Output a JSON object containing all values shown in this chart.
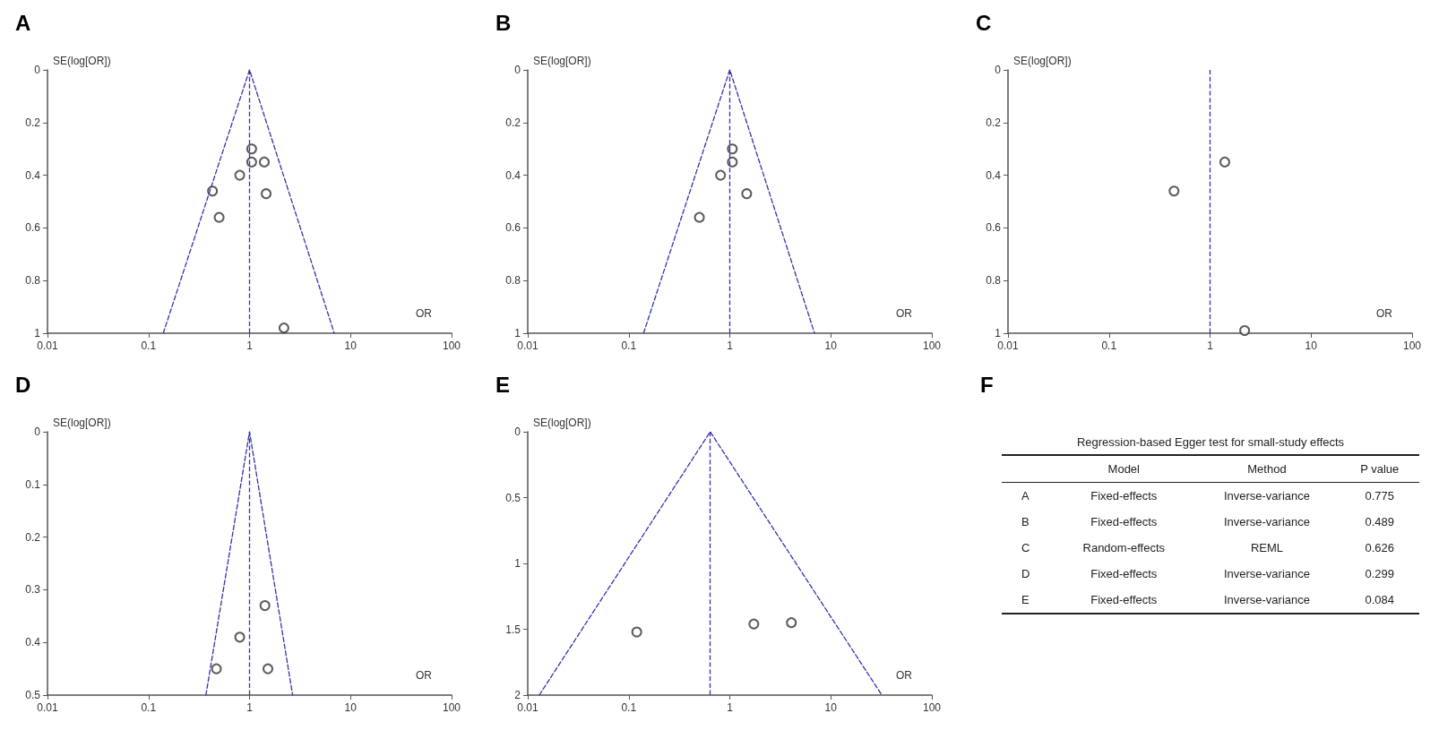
{
  "chart_data": [
    {
      "type": "scatter",
      "title": "A",
      "xlabel": "OR",
      "ylabel": "SE(log[OR])",
      "log": "x",
      "xlim": [
        0.01,
        100
      ],
      "xticks": [
        0.01,
        0.1,
        1,
        10,
        100
      ],
      "ylim": [
        1,
        0
      ],
      "yticks": [
        0,
        0.2,
        0.4,
        0.6,
        0.8,
        1
      ],
      "marker": "circle",
      "grid": false,
      "ref_lines": [
        {
          "axis": "x",
          "value": 1,
          "color": "#3333aa",
          "line_style": "dashed"
        }
      ],
      "series": [
        {
          "type": "scatter",
          "color": "#333333",
          "x": [
            1.05,
            1.05,
            1.4,
            0.8,
            0.43,
            1.46,
            0.5,
            2.19
          ],
          "values": [
            0.3,
            0.35,
            0.35,
            0.4,
            0.46,
            0.47,
            0.56,
            0.98
          ]
        },
        {
          "type": "line",
          "color": "#3333aa",
          "line_style": "dashed",
          "marker": "none",
          "x": [
            0.14,
            1,
            6.9
          ],
          "values": [
            1,
            0,
            1
          ]
        }
      ]
    },
    {
      "type": "scatter",
      "title": "B",
      "xlabel": "OR",
      "ylabel": "SE(log[OR])",
      "log": "x",
      "xlim": [
        0.01,
        100
      ],
      "xticks": [
        0.01,
        0.1,
        1,
        10,
        100
      ],
      "ylim": [
        1,
        0
      ],
      "yticks": [
        0,
        0.2,
        0.4,
        0.6,
        0.8,
        1
      ],
      "marker": "circle",
      "grid": false,
      "ref_lines": [
        {
          "axis": "x",
          "value": 1,
          "color": "#3333aa",
          "line_style": "dashed"
        }
      ],
      "series": [
        {
          "type": "scatter",
          "color": "#333333",
          "x": [
            1.06,
            1.06,
            0.81,
            1.47,
            0.5
          ],
          "values": [
            0.3,
            0.35,
            0.4,
            0.47,
            0.56
          ]
        },
        {
          "type": "line",
          "color": "#3333aa",
          "line_style": "dashed",
          "marker": "none",
          "x": [
            0.14,
            1,
            6.9
          ],
          "values": [
            1,
            0,
            1
          ]
        }
      ]
    },
    {
      "type": "scatter",
      "title": "C",
      "xlabel": "OR",
      "ylabel": "SE(log[OR])",
      "log": "x",
      "xlim": [
        0.01,
        100
      ],
      "xticks": [
        0.01,
        0.1,
        1,
        10,
        100
      ],
      "ylim": [
        1,
        0
      ],
      "yticks": [
        0,
        0.2,
        0.4,
        0.6,
        0.8,
        1
      ],
      "marker": "circle",
      "grid": false,
      "ref_lines": [
        {
          "axis": "x",
          "value": 1,
          "color": "#3333aa",
          "line_style": "dashed"
        }
      ],
      "series": [
        {
          "type": "scatter",
          "color": "#333333",
          "x": [
            1.4,
            0.44,
            2.2
          ],
          "values": [
            0.35,
            0.46,
            0.99
          ]
        }
      ]
    },
    {
      "type": "scatter",
      "title": "D",
      "xlabel": "OR",
      "ylabel": "SE(log[OR])",
      "log": "x",
      "xlim": [
        0.01,
        100
      ],
      "xticks": [
        0.01,
        0.1,
        1,
        10,
        100
      ],
      "ylim": [
        0.5,
        0
      ],
      "yticks": [
        0,
        0.1,
        0.2,
        0.3,
        0.4,
        0.5
      ],
      "marker": "circle",
      "grid": false,
      "ref_lines": [
        {
          "axis": "x",
          "value": 1,
          "color": "#3333aa",
          "line_style": "dashed"
        }
      ],
      "series": [
        {
          "type": "scatter",
          "color": "#333333",
          "x": [
            1.42,
            0.8,
            0.47,
            1.52
          ],
          "values": [
            0.33,
            0.39,
            0.45,
            0.45
          ]
        },
        {
          "type": "line",
          "color": "#3333aa",
          "line_style": "dashed",
          "marker": "none",
          "x": [
            0.37,
            1,
            2.67
          ],
          "values": [
            0.5,
            0,
            0.5
          ]
        }
      ]
    },
    {
      "type": "scatter",
      "title": "E",
      "xlabel": "OR",
      "ylabel": "SE(log[OR])",
      "log": "x",
      "xlim": [
        0.01,
        100
      ],
      "xticks": [
        0.01,
        0.1,
        1,
        10,
        100
      ],
      "ylim": [
        2,
        0
      ],
      "yticks": [
        0,
        0.5,
        1,
        1.5,
        2
      ],
      "marker": "circle",
      "grid": false,
      "ref_lines": [
        {
          "axis": "x",
          "value": 0.64,
          "color": "#3333aa",
          "line_style": "dashed"
        }
      ],
      "series": [
        {
          "type": "scatter",
          "color": "#333333",
          "x": [
            0.12,
            1.73,
            4.07
          ],
          "values": [
            1.52,
            1.46,
            1.45
          ]
        },
        {
          "type": "line",
          "color": "#3333aa",
          "line_style": "dashed",
          "marker": "none",
          "x": [
            0.013,
            0.64,
            32
          ],
          "values": [
            2,
            0,
            2
          ]
        }
      ]
    },
    {
      "type": "other",
      "title": "F",
      "subtitle": "Regression-based Egger test for small-study effects",
      "categories": [
        "Model",
        "Method",
        "P value"
      ],
      "y_categories": [
        "A",
        "B",
        "C",
        "D",
        "E"
      ],
      "cell_labels": [
        [
          "Fixed-effects",
          "Inverse-variance",
          "0.775"
        ],
        [
          "Fixed-effects",
          "Inverse-variance",
          "0.489"
        ],
        [
          "Random-effects",
          "REML",
          "0.626"
        ],
        [
          "Fixed-effects",
          "Inverse-variance",
          "0.299"
        ],
        [
          "Fixed-effects",
          "Inverse-variance",
          "0.084"
        ]
      ]
    }
  ]
}
